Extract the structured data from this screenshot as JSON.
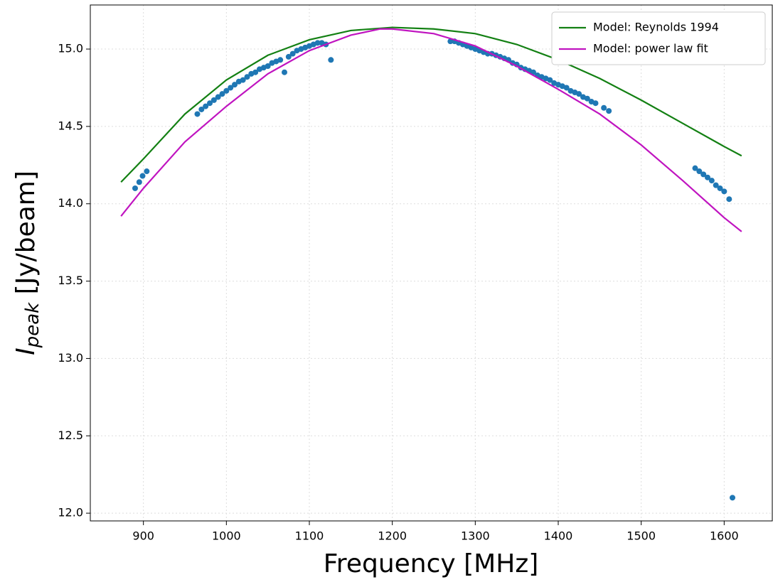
{
  "chart_data": {
    "type": "scatter",
    "xlabel": "Frequency [MHz]",
    "ylabel": {
      "symbol": "I",
      "subscript": "peak",
      "unit": " [Jy/beam]"
    },
    "xlim": [
      836,
      1658
    ],
    "ylim": [
      11.95,
      15.285
    ],
    "xticks": [
      900,
      1000,
      1100,
      1200,
      1300,
      1400,
      1500,
      1600
    ],
    "yticks": [
      {
        "value": 12,
        "label": "12.0"
      },
      12.5,
      {
        "value": 13,
        "label": "13.0"
      },
      13.5,
      {
        "value": 14,
        "label": "14.0"
      },
      14.5,
      {
        "value": 15,
        "label": "15.0"
      }
    ],
    "grid": true,
    "legend": "upper right",
    "series": [
      {
        "type": "scatter",
        "color": "#1f77b4",
        "x": [
          890,
          895,
          899,
          904,
          965,
          970,
          975,
          980,
          985,
          990,
          995,
          1000,
          1005,
          1010,
          1015,
          1020,
          1025,
          1030,
          1035,
          1040,
          1045,
          1050,
          1055,
          1060,
          1065,
          1070,
          1075,
          1080,
          1085,
          1090,
          1095,
          1100,
          1105,
          1110,
          1115,
          1120,
          1126,
          1270,
          1275,
          1280,
          1285,
          1290,
          1295,
          1300,
          1305,
          1310,
          1315,
          1320,
          1325,
          1330,
          1335,
          1340,
          1345,
          1350,
          1355,
          1360,
          1365,
          1370,
          1375,
          1380,
          1385,
          1390,
          1395,
          1400,
          1405,
          1410,
          1415,
          1420,
          1425,
          1430,
          1435,
          1440,
          1445,
          1455,
          1461,
          1565,
          1570,
          1575,
          1580,
          1585,
          1590,
          1595,
          1600,
          1606,
          1610
        ],
        "values": [
          14.1,
          14.14,
          14.18,
          14.21,
          14.58,
          14.61,
          14.63,
          14.65,
          14.67,
          14.69,
          14.71,
          14.73,
          14.75,
          14.77,
          14.79,
          14.8,
          14.82,
          14.84,
          14.85,
          14.87,
          14.88,
          14.89,
          14.91,
          14.92,
          14.93,
          14.85,
          14.95,
          14.97,
          14.99,
          15.0,
          15.01,
          15.02,
          15.03,
          15.04,
          15.04,
          15.03,
          14.93,
          15.05,
          15.05,
          15.04,
          15.03,
          15.02,
          15.01,
          15.0,
          14.99,
          14.98,
          14.97,
          14.97,
          14.96,
          14.95,
          14.94,
          14.93,
          14.91,
          14.9,
          14.88,
          14.87,
          14.86,
          14.85,
          14.83,
          14.82,
          14.81,
          14.8,
          14.78,
          14.77,
          14.76,
          14.75,
          14.73,
          14.72,
          14.71,
          14.69,
          14.68,
          14.66,
          14.65,
          14.62,
          14.6,
          14.23,
          14.21,
          14.19,
          14.17,
          14.15,
          14.12,
          14.1,
          14.08,
          14.03,
          12.1
        ]
      },
      {
        "type": "line",
        "name": "Model: Reynolds 1994",
        "color": "#138013",
        "x": [
          873,
          900,
          950,
          1000,
          1050,
          1100,
          1150,
          1200,
          1250,
          1300,
          1350,
          1400,
          1450,
          1500,
          1550,
          1600,
          1621
        ],
        "values": [
          14.14,
          14.29,
          14.58,
          14.8,
          14.96,
          15.06,
          15.12,
          15.14,
          15.13,
          15.1,
          15.03,
          14.93,
          14.81,
          14.67,
          14.52,
          14.37,
          14.31
        ]
      },
      {
        "type": "line",
        "name": "Model: power law fit",
        "color": "#c014c0",
        "x": [
          873,
          900,
          950,
          1000,
          1050,
          1100,
          1150,
          1185,
          1200,
          1250,
          1300,
          1350,
          1400,
          1450,
          1500,
          1550,
          1600,
          1621
        ],
        "values": [
          13.92,
          14.1,
          14.4,
          14.63,
          14.84,
          14.99,
          15.09,
          15.13,
          15.13,
          15.1,
          15.02,
          14.89,
          14.74,
          14.58,
          14.38,
          14.15,
          13.91,
          13.82
        ]
      }
    ]
  }
}
